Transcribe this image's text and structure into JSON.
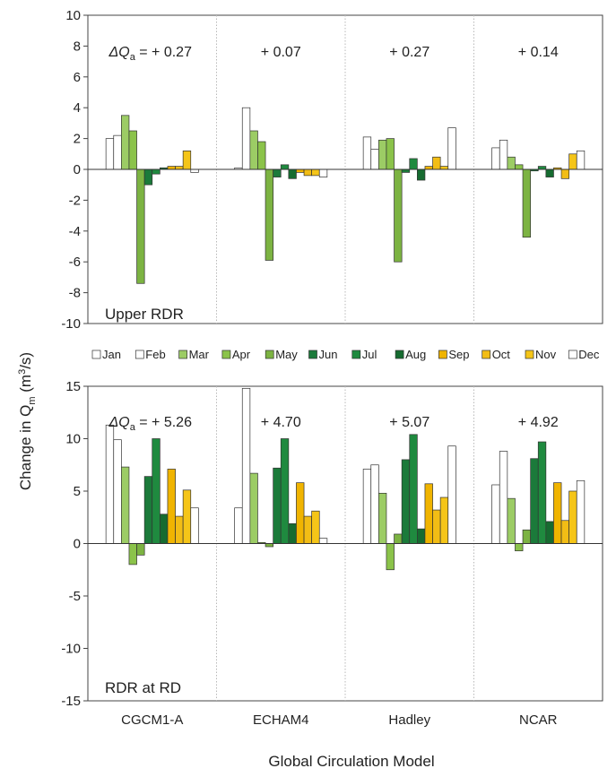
{
  "chart_data": [
    {
      "type": "bar",
      "panel_label": "Upper RDR",
      "categories": [
        "CGCM1-A",
        "ECHAM4",
        "Hadley",
        "NCAR"
      ],
      "annotations": [
        "+ 0.27",
        "+ 0.07",
        "+ 0.27",
        "+ 0.14"
      ],
      "annotation_prefix": "ΔQ",
      "annotation_prefix_sub": "a",
      "annotation_prefix_suffix": " = ",
      "ylim": [
        -10,
        10
      ],
      "yticks": [
        -10,
        -8,
        -6,
        -4,
        -2,
        0,
        2,
        4,
        6,
        8,
        10
      ],
      "ytick_labels": [
        "-10",
        "-8",
        "-6",
        "-4",
        "-2",
        "0",
        "2",
        "4",
        "6",
        "8",
        "10"
      ],
      "series": [
        {
          "name": "Jan",
          "color": "#ffffff",
          "values": [
            2.0,
            0.1,
            2.1,
            1.4
          ]
        },
        {
          "name": "Feb",
          "color": "#ffffff",
          "values": [
            2.2,
            4.0,
            1.3,
            1.9
          ]
        },
        {
          "name": "Mar",
          "color": "#9ccc65",
          "values": [
            3.5,
            2.5,
            1.9,
            0.8
          ]
        },
        {
          "name": "Apr",
          "color": "#8bc34a",
          "values": [
            2.5,
            1.8,
            2.0,
            0.3
          ]
        },
        {
          "name": "May",
          "color": "#7cb342",
          "values": [
            -7.4,
            -5.9,
            -6.0,
            -4.4
          ]
        },
        {
          "name": "Jun",
          "color": "#1b7a3a",
          "values": [
            -1.0,
            -0.5,
            -0.2,
            -0.1
          ]
        },
        {
          "name": "Jul",
          "color": "#1f8a3f",
          "values": [
            -0.3,
            0.3,
            0.7,
            0.2
          ]
        },
        {
          "name": "Aug",
          "color": "#166b30",
          "values": [
            0.1,
            -0.6,
            -0.7,
            -0.5
          ]
        },
        {
          "name": "Sep",
          "color": "#f0b400",
          "values": [
            0.2,
            -0.2,
            0.2,
            0.1
          ]
        },
        {
          "name": "Oct",
          "color": "#f2bd15",
          "values": [
            0.2,
            -0.4,
            0.8,
            -0.6
          ]
        },
        {
          "name": "Nov",
          "color": "#f5c518",
          "values": [
            1.2,
            -0.4,
            0.2,
            1.0
          ]
        },
        {
          "name": "Dec",
          "color": "#ffffff",
          "values": [
            -0.2,
            -0.5,
            2.7,
            1.2
          ]
        }
      ]
    },
    {
      "type": "bar",
      "panel_label": "RDR at RD",
      "categories": [
        "CGCM1-A",
        "ECHAM4",
        "Hadley",
        "NCAR"
      ],
      "annotations": [
        "+ 5.26",
        "+ 4.70",
        "+ 5.07",
        "+ 4.92"
      ],
      "annotation_prefix": "ΔQ",
      "annotation_prefix_sub": "a",
      "annotation_prefix_suffix": " = ",
      "ylim": [
        -15,
        15
      ],
      "yticks": [
        -15,
        -10,
        -5,
        0,
        5,
        10,
        15
      ],
      "ytick_labels": [
        "-15",
        "-10",
        "-5",
        "0",
        "5",
        "10",
        "15"
      ],
      "series": [
        {
          "name": "Jan",
          "color": "#ffffff",
          "values": [
            11.3,
            3.4,
            7.1,
            5.6
          ]
        },
        {
          "name": "Feb",
          "color": "#ffffff",
          "values": [
            9.9,
            14.8,
            7.5,
            8.8
          ]
        },
        {
          "name": "Mar",
          "color": "#9ccc65",
          "values": [
            7.3,
            6.7,
            4.8,
            4.3
          ]
        },
        {
          "name": "Apr",
          "color": "#8bc34a",
          "values": [
            -2.0,
            0.1,
            -2.5,
            -0.7
          ]
        },
        {
          "name": "May",
          "color": "#7cb342",
          "values": [
            -1.1,
            -0.3,
            0.9,
            1.3
          ]
        },
        {
          "name": "Jun",
          "color": "#1b7a3a",
          "values": [
            6.4,
            7.2,
            8.0,
            8.1
          ]
        },
        {
          "name": "Jul",
          "color": "#1f8a3f",
          "values": [
            10.0,
            10.0,
            10.4,
            9.7
          ]
        },
        {
          "name": "Aug",
          "color": "#166b30",
          "values": [
            2.8,
            1.9,
            1.4,
            2.1
          ]
        },
        {
          "name": "Sep",
          "color": "#f0b400",
          "values": [
            7.1,
            5.8,
            5.7,
            5.8
          ]
        },
        {
          "name": "Oct",
          "color": "#f2bd15",
          "values": [
            2.6,
            2.6,
            3.2,
            2.2
          ]
        },
        {
          "name": "Nov",
          "color": "#f5c518",
          "values": [
            5.1,
            3.1,
            4.4,
            5.0
          ]
        },
        {
          "name": "Dec",
          "color": "#ffffff",
          "values": [
            3.4,
            0.5,
            9.3,
            6.0
          ]
        }
      ]
    }
  ],
  "legend": [
    "Jan",
    "Feb",
    "Mar",
    "Apr",
    "May",
    "Jun",
    "Jul",
    "Aug",
    "Sep",
    "Oct",
    "Nov",
    "Dec"
  ],
  "ylabel_main": "Change in Q",
  "ylabel_sub": "m",
  "ylabel_units_pre": " (m",
  "ylabel_units_sup": "3",
  "ylabel_units_post": "/s)",
  "xlabel": "Global Circulation Model",
  "grid": false,
  "legend_placement": "between panels"
}
